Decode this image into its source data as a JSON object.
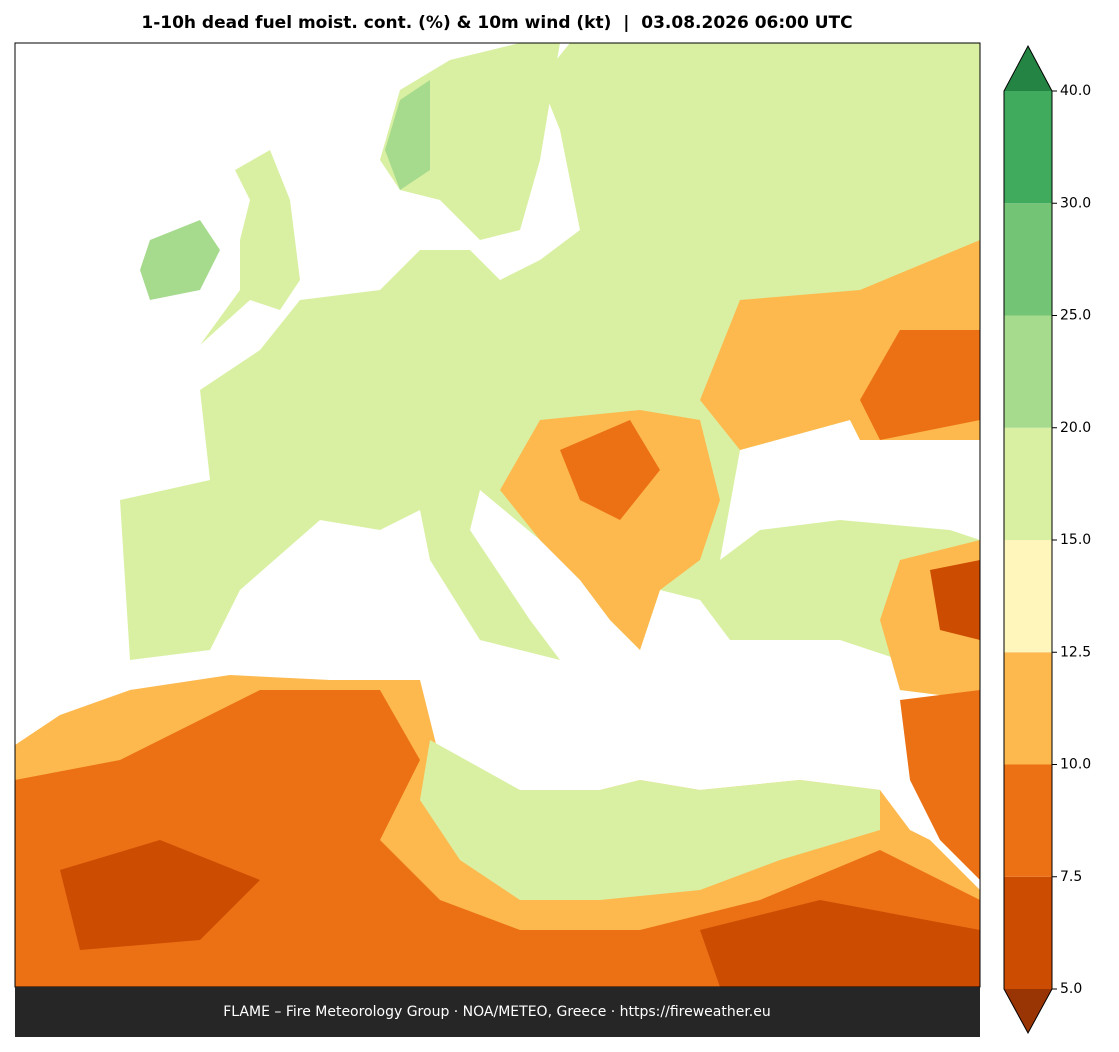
{
  "title": "1-10h dead fuel moist. cont. (%) & 10m wind (kt)  |  03.08.2026 06:00 UTC",
  "footer": "FLAME – Fire Meteorology Group · NOA/METEO, Greece · https://fireweather.eu",
  "colorbar": {
    "ticks": [
      {
        "value": 5,
        "label": "5.0"
      },
      {
        "value": 7.5,
        "label": "7.5"
      },
      {
        "value": 10,
        "label": "10.0"
      },
      {
        "value": 12.5,
        "label": "12.5"
      },
      {
        "value": 15,
        "label": "15.0"
      },
      {
        "value": 20,
        "label": "20.0"
      },
      {
        "value": 25,
        "label": "25.0"
      },
      {
        "value": 30,
        "label": "30.0"
      },
      {
        "value": 40,
        "label": "40.0"
      }
    ],
    "colors": [
      "#cc4c02",
      "#ec7014",
      "#fdb94e",
      "#fff6bb",
      "#d9f0a3",
      "#a6db8e",
      "#74c476",
      "#41ab5d"
    ],
    "under_color": "#993404",
    "over_color": "#238443"
  }
}
